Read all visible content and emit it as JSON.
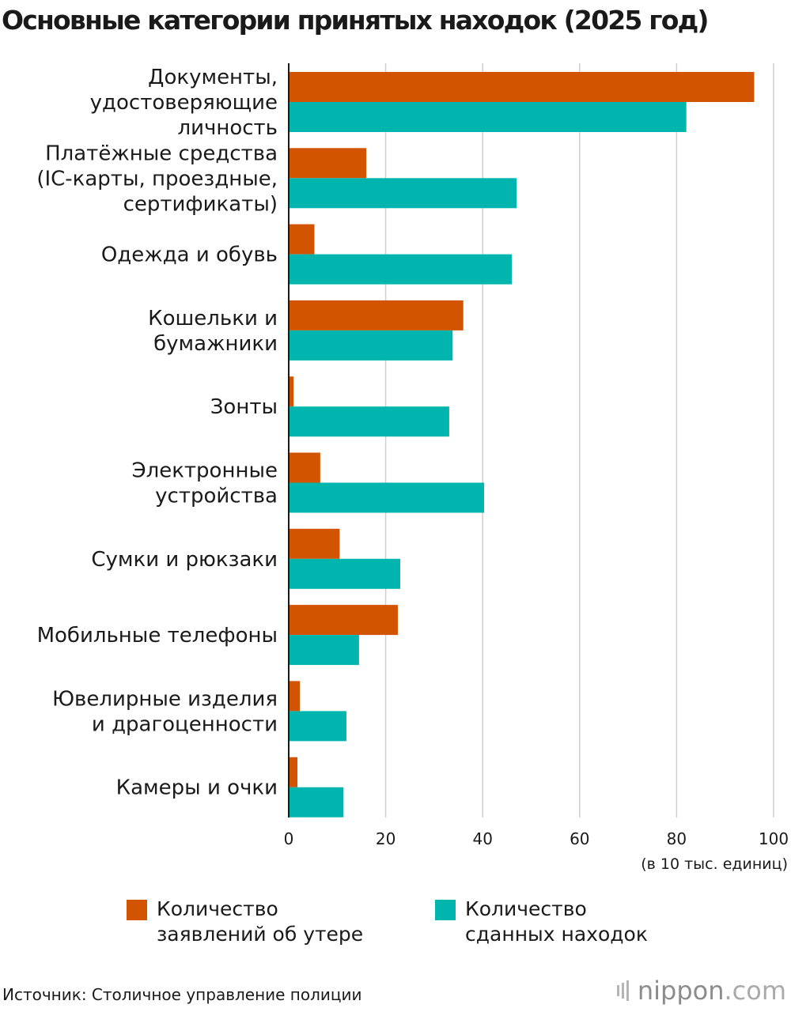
{
  "chart_data": {
    "type": "bar",
    "orientation": "horizontal",
    "title": "Основные категории принятых находок (2025 год)",
    "categories": [
      [
        "Документы,",
        "удостоверяющие",
        "личность"
      ],
      [
        "Платёжные средства",
        "(IC-карты, проездные,",
        "сертификаты)"
      ],
      [
        "Одежда и обувь"
      ],
      [
        "Кошельки и",
        "бумажники"
      ],
      [
        "Зонты"
      ],
      [
        "Электронные",
        "устройства"
      ],
      [
        "Сумки и рюкзаки"
      ],
      [
        "Мобильные телефоны"
      ],
      [
        "Ювелирные изделия",
        "и драгоценности"
      ],
      [
        "Камеры и очки"
      ]
    ],
    "series": [
      {
        "name": "Количество\nзаявлений об утере",
        "color": "#d35400",
        "values": [
          96.0,
          16.0,
          5.3,
          36.0,
          1.0,
          6.5,
          10.5,
          22.5,
          2.3,
          1.8
        ]
      },
      {
        "name": "Количество\nсданных находок",
        "color": "#00b5ad",
        "values": [
          82.0,
          47.0,
          46.0,
          33.8,
          33.1,
          40.3,
          23.0,
          14.5,
          11.9,
          11.3
        ]
      }
    ],
    "xlim": [
      0,
      100
    ],
    "xticks": [
      "0",
      "20",
      "40",
      "60",
      "80",
      "100"
    ],
    "xunit": "(в 10 тыс. единиц)",
    "grid": true,
    "legend_position": "bottom"
  },
  "footer": {
    "source": "Источник: Столичное управление полиции",
    "brand_name": "nippon",
    "brand_suffix": ".com"
  }
}
